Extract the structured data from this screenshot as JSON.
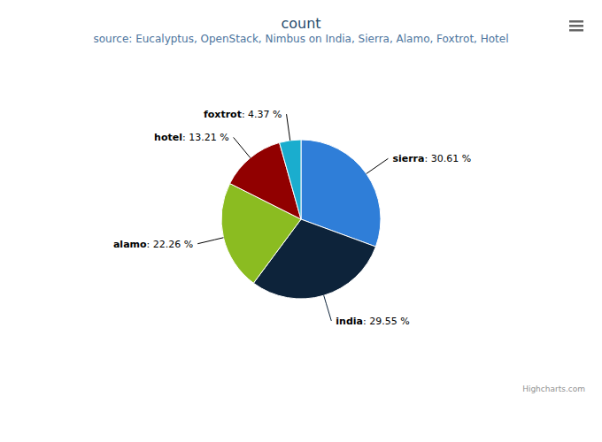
{
  "chart_data": {
    "type": "pie",
    "title": "count",
    "subtitle": "source: Eucalyptus, OpenStack, Nimbus on India, Sierra, Alamo, Foxtrot, Hotel",
    "categories": [
      "sierra",
      "india",
      "alamo",
      "hotel",
      "foxtrot"
    ],
    "values": [
      30.61,
      29.55,
      22.26,
      13.21,
      4.37
    ],
    "value_labels": [
      "30.61 %",
      "29.55 %",
      "22.26 %",
      "13.21 %",
      "4.37 %"
    ],
    "colors": [
      "#2f7ed8",
      "#0d233a",
      "#8bbc21",
      "#910000",
      "#1aadce"
    ],
    "data_labels": true,
    "credits": "Highcharts.com"
  }
}
